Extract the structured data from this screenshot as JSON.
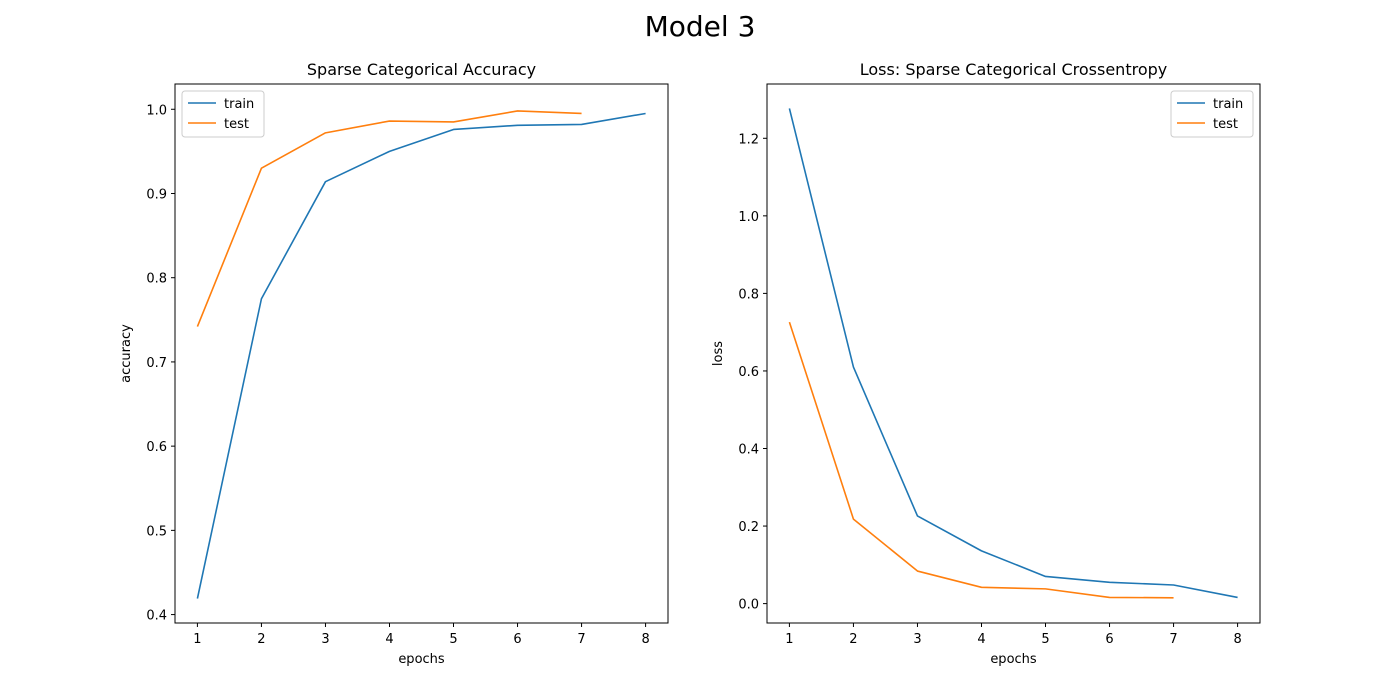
{
  "figure": {
    "title": "Model 3"
  },
  "chart_data": [
    {
      "type": "line",
      "title": "Sparse Categorical Accuracy",
      "xlabel": "epochs",
      "ylabel": "accuracy",
      "xlim": [
        0.65,
        8.35
      ],
      "ylim": [
        0.39,
        1.03
      ],
      "xticks": [
        1,
        2,
        3,
        4,
        5,
        6,
        7,
        8
      ],
      "yticks": [
        0.4,
        0.5,
        0.6,
        0.7,
        0.8,
        0.9,
        1.0
      ],
      "ytick_labels": [
        "0.4",
        "0.5",
        "0.6",
        "0.7",
        "0.8",
        "0.9",
        "1.0"
      ],
      "legend": "upper left",
      "grid": false,
      "series": [
        {
          "name": "train",
          "color": "#1f77b4",
          "x": [
            1,
            2,
            3,
            4,
            5,
            6,
            7,
            8
          ],
          "values": [
            0.419,
            0.775,
            0.914,
            0.95,
            0.976,
            0.981,
            0.982,
            0.995
          ]
        },
        {
          "name": "test",
          "color": "#ff7f0e",
          "x": [
            1,
            2,
            3,
            4,
            5,
            6,
            7
          ],
          "values": [
            0.742,
            0.93,
            0.972,
            0.986,
            0.985,
            0.998,
            0.995
          ]
        }
      ]
    },
    {
      "type": "line",
      "title": "Loss: Sparse Categorical Crossentropy",
      "xlabel": "epochs",
      "ylabel": "loss",
      "xlim": [
        0.65,
        8.35
      ],
      "ylim": [
        -0.05,
        1.34
      ],
      "xticks": [
        1,
        2,
        3,
        4,
        5,
        6,
        7,
        8
      ],
      "yticks": [
        0.0,
        0.2,
        0.4,
        0.6,
        0.8,
        1.0,
        1.2
      ],
      "ytick_labels": [
        "0.0",
        "0.2",
        "0.4",
        "0.6",
        "0.8",
        "1.0",
        "1.2"
      ],
      "legend": "upper right",
      "grid": false,
      "series": [
        {
          "name": "train",
          "color": "#1f77b4",
          "x": [
            1,
            2,
            3,
            4,
            5,
            6,
            7,
            8
          ],
          "values": [
            1.277,
            0.61,
            0.226,
            0.136,
            0.07,
            0.055,
            0.048,
            0.016
          ]
        },
        {
          "name": "test",
          "color": "#ff7f0e",
          "x": [
            1,
            2,
            3,
            4,
            5,
            6,
            7
          ],
          "values": [
            0.726,
            0.218,
            0.084,
            0.042,
            0.038,
            0.016,
            0.015
          ]
        }
      ]
    }
  ]
}
